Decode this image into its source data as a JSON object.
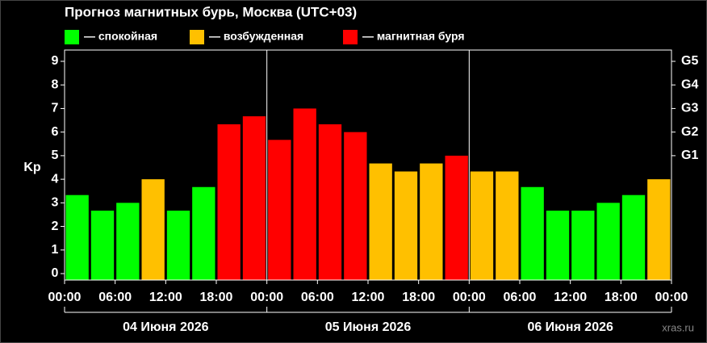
{
  "chart_data": {
    "type": "bar",
    "title": "Прогноз магнитных бурь, Москва (UTC+03)",
    "y_label": "Kp",
    "watermark": "xras.ru",
    "x": [
      0,
      3,
      6,
      9,
      12,
      15,
      18,
      21,
      24,
      27,
      30,
      33,
      36,
      39,
      42,
      45,
      48,
      51,
      54,
      57,
      60,
      63,
      66,
      69
    ],
    "series": [
      {
        "name": "— спокойная",
        "color": "#00ff00",
        "values": [
          3.33,
          2.67,
          3.0,
          null,
          2.67,
          3.67,
          null,
          null,
          null,
          null,
          null,
          null,
          null,
          null,
          null,
          null,
          null,
          null,
          3.67,
          2.67,
          2.67,
          3.0,
          3.33,
          null
        ]
      },
      {
        "name": "— возбужденная",
        "color": "#ffc000",
        "values": [
          null,
          null,
          null,
          4.0,
          null,
          null,
          null,
          null,
          null,
          null,
          null,
          null,
          4.67,
          4.33,
          4.67,
          null,
          4.33,
          4.33,
          null,
          null,
          null,
          null,
          null,
          4.0
        ]
      },
      {
        "name": "— магнитная буря",
        "color": "#ff0000",
        "values": [
          null,
          null,
          null,
          null,
          null,
          null,
          6.33,
          6.67,
          5.67,
          7.0,
          6.33,
          6.0,
          null,
          null,
          null,
          5.0,
          null,
          null,
          null,
          null,
          null,
          null,
          null,
          null
        ]
      }
    ],
    "xlim": [
      0,
      72
    ],
    "xticks": [
      {
        "value": 0,
        "label": "00:00"
      },
      {
        "value": 6,
        "label": "06:00"
      },
      {
        "value": 12,
        "label": "12:00"
      },
      {
        "value": 18,
        "label": "18:00"
      },
      {
        "value": 24,
        "label": "00:00"
      },
      {
        "value": 30,
        "label": "06:00"
      },
      {
        "value": 36,
        "label": "12:00"
      },
      {
        "value": 42,
        "label": "18:00"
      },
      {
        "value": 48,
        "label": "00:00"
      },
      {
        "value": 54,
        "label": "06:00"
      },
      {
        "value": 60,
        "label": "12:00"
      },
      {
        "value": 66,
        "label": "18:00"
      },
      {
        "value": 72,
        "label": "00:00"
      }
    ],
    "days": [
      "04 Июня 2026",
      "05 Июня 2026",
      "06 Июня 2026"
    ],
    "day_bounds": [
      0,
      24,
      48,
      72
    ],
    "ylim": [
      0,
      9
    ],
    "yticks": [
      0,
      1,
      2,
      3,
      4,
      5,
      6,
      7,
      8,
      9
    ],
    "y2lim": [
      0,
      9
    ],
    "y2ticks": [
      {
        "value": 5,
        "label": "G1"
      },
      {
        "value": 6,
        "label": "G2"
      },
      {
        "value": 7,
        "label": "G3"
      },
      {
        "value": 8,
        "label": "G4"
      },
      {
        "value": 9,
        "label": "G5"
      }
    ]
  }
}
